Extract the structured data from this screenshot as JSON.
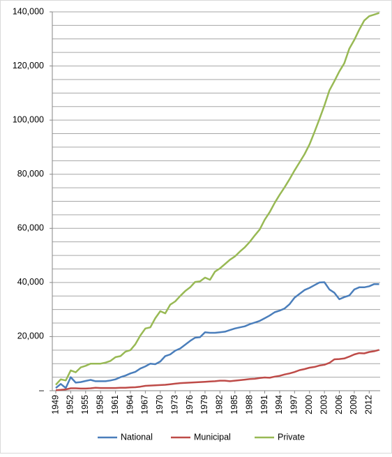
{
  "chart_data": {
    "type": "line",
    "x": [
      1949,
      1950,
      1951,
      1952,
      1953,
      1954,
      1955,
      1956,
      1957,
      1958,
      1959,
      1960,
      1961,
      1962,
      1963,
      1964,
      1965,
      1966,
      1967,
      1968,
      1969,
      1970,
      1971,
      1972,
      1973,
      1974,
      1975,
      1976,
      1977,
      1978,
      1979,
      1980,
      1981,
      1982,
      1983,
      1984,
      1985,
      1986,
      1987,
      1988,
      1989,
      1990,
      1991,
      1992,
      1993,
      1994,
      1995,
      1996,
      1997,
      1998,
      1999,
      2000,
      2001,
      2002,
      2003,
      2004,
      2005,
      2006,
      2007,
      2008,
      2009,
      2010,
      2011,
      2012,
      2013,
      2014
    ],
    "xlim": [
      1948.3,
      2014.2
    ],
    "xticks": [
      1949,
      1952,
      1955,
      1958,
      1961,
      1964,
      1967,
      1970,
      1973,
      1976,
      1979,
      1982,
      1985,
      1988,
      1991,
      1994,
      1997,
      2000,
      2003,
      2006,
      2009,
      2012
    ],
    "ylim": [
      0,
      140000
    ],
    "yticks": [
      {
        "value": 0,
        "label": "–"
      },
      {
        "value": 20000,
        "label": "20,000"
      },
      {
        "value": 40000,
        "label": "40,000"
      },
      {
        "value": 60000,
        "label": "60,000"
      },
      {
        "value": 80000,
        "label": "80,000"
      },
      {
        "value": 100000,
        "label": "100,000"
      },
      {
        "value": 120000,
        "label": "120,000"
      },
      {
        "value": 140000,
        "label": "140,000"
      }
    ],
    "ygrid": [
      5000,
      10000,
      15000,
      20000,
      25000,
      30000,
      35000,
      40000,
      45000,
      50000,
      55000,
      60000,
      65000,
      70000,
      75000,
      80000,
      85000,
      90000,
      95000,
      100000,
      105000,
      110000,
      115000,
      120000,
      125000,
      130000,
      135000,
      140000
    ],
    "legend": "bottom",
    "series": [
      {
        "name": "National",
        "color": "#4a7ebb",
        "values": [
          1000,
          2500,
          1000,
          5000,
          3000,
          3200,
          3600,
          4000,
          3500,
          3500,
          3500,
          3800,
          4200,
          5000,
          5600,
          6400,
          7000,
          8200,
          9000,
          10000,
          9800,
          10800,
          12800,
          13400,
          14800,
          15600,
          17000,
          18400,
          19600,
          19800,
          21600,
          21400,
          21400,
          21600,
          21800,
          22400,
          23000,
          23400,
          23800,
          24600,
          25200,
          25800,
          26800,
          27800,
          29000,
          29600,
          30400,
          32000,
          34400,
          35800,
          37200,
          38000,
          39000,
          40000,
          40100,
          37400,
          36200,
          33800,
          34600,
          35200,
          37400,
          38200,
          38200,
          38600,
          39400,
          39400
        ]
      },
      {
        "name": "Municipal",
        "color": "#be4b48",
        "values": [
          200,
          300,
          500,
          900,
          900,
          800,
          800,
          900,
          1100,
          1000,
          1000,
          1000,
          1000,
          1100,
          1100,
          1200,
          1300,
          1500,
          1800,
          1900,
          2000,
          2100,
          2200,
          2400,
          2600,
          2800,
          2900,
          3000,
          3100,
          3200,
          3300,
          3400,
          3500,
          3700,
          3700,
          3500,
          3700,
          3900,
          4100,
          4300,
          4400,
          4700,
          4900,
          4800,
          5200,
          5500,
          6000,
          6400,
          6900,
          7600,
          8000,
          8500,
          8800,
          9300,
          9600,
          10300,
          11600,
          11700,
          11900,
          12600,
          13400,
          13900,
          13800,
          14300,
          14600,
          15100
        ]
      },
      {
        "name": "Private",
        "color": "#98b954",
        "values": [
          2200,
          4200,
          3800,
          7500,
          6800,
          8600,
          9200,
          10000,
          10000,
          10000,
          10400,
          11000,
          12400,
          12800,
          14400,
          15000,
          17200,
          20400,
          23000,
          23400,
          26800,
          29400,
          28600,
          31800,
          33000,
          35000,
          36800,
          38200,
          40200,
          40400,
          41800,
          41000,
          44000,
          45200,
          46800,
          48400,
          49600,
          51400,
          53000,
          55000,
          57400,
          59600,
          63200,
          66000,
          69400,
          72400,
          75200,
          78200,
          81400,
          84400,
          87400,
          91000,
          95600,
          100400,
          105400,
          111000,
          114400,
          118000,
          121000,
          126400,
          129600,
          133400,
          136800,
          138400,
          139000,
          139600
        ]
      }
    ]
  }
}
